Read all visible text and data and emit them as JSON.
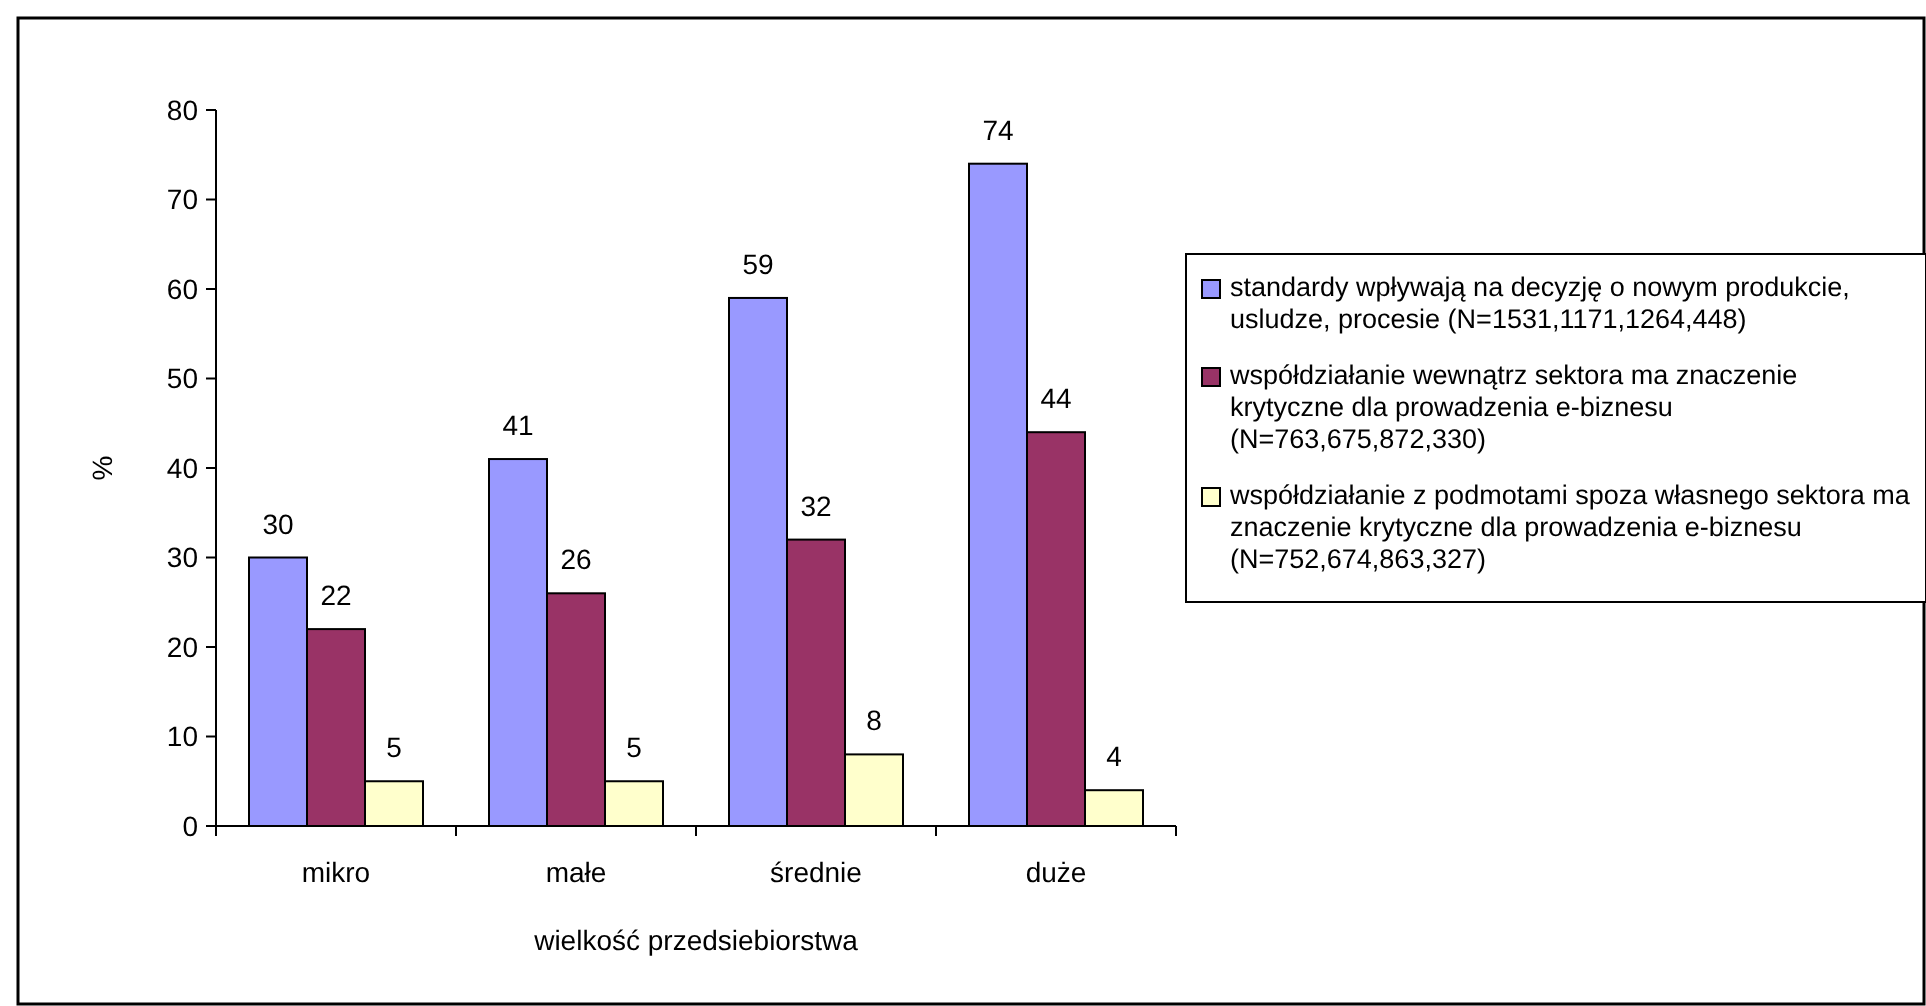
{
  "chart_data": {
    "type": "bar",
    "categories": [
      "mikro",
      "małe",
      "średnie",
      "duże"
    ],
    "series": [
      {
        "name": "standardy wpływają na decyzję o nowym produkcie, usludze, procesie (N=1531,1171,1264,448)",
        "color": "#9999ff",
        "values": [
          30,
          41,
          59,
          74
        ]
      },
      {
        "name": "współdziałanie wewnątrz sektora ma znaczenie krytyczne dla prowadzenia e-biznesu (N=763,675,872,330)",
        "color": "#993366",
        "values": [
          22,
          26,
          32,
          44
        ]
      },
      {
        "name": "współdziałanie z podmotami spoza własnego sektora ma znaczenie krytyczne dla prowadzenia e-biznesu (N=752,674,863,327)",
        "color": "#ffffcc",
        "values": [
          5,
          5,
          8,
          4
        ]
      }
    ],
    "xlabel": "wielkość przedsiebiorstwa",
    "ylabel": "%",
    "ylim": [
      0,
      80
    ],
    "yticks": [
      0,
      10,
      20,
      30,
      40,
      50,
      60,
      70,
      80
    ],
    "data_labels": true,
    "legend": "right",
    "grid": false
  }
}
